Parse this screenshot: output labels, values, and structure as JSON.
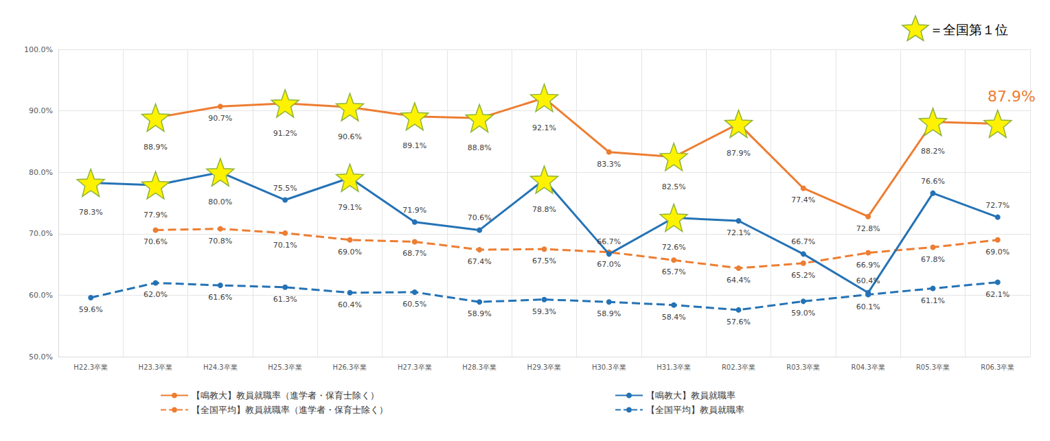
{
  "chart_data": {
    "type": "line",
    "categories": [
      "H22.3卒業",
      "H23.3卒業",
      "H24.3卒業",
      "H25.3卒業",
      "H26.3卒業",
      "H27.3卒業",
      "H28.3卒業",
      "H29.3卒業",
      "H30.3卒業",
      "H31.3卒業",
      "R02.3卒業",
      "R03.3卒業",
      "R04.3卒業",
      "R05.3卒業",
      "R06.3卒業"
    ],
    "ylim": [
      50,
      100
    ],
    "yticks": [
      {
        "value": 50,
        "label": "50.0%"
      },
      {
        "value": 60,
        "label": "60.0%"
      },
      {
        "value": 70,
        "label": "70.0%"
      },
      {
        "value": 80,
        "label": "80.0%"
      },
      {
        "value": 90,
        "label": "90.0%"
      },
      {
        "value": 100,
        "label": "100.0%"
      }
    ],
    "grid": true,
    "legend": "bottom",
    "data_labels": true,
    "marker": "circle",
    "first_place_key": "＝全国第１位",
    "annotations": [
      {
        "text": "87.9%",
        "x": "R06.3卒業",
        "y": 87.9
      }
    ],
    "series": [
      {
        "name": "【鳴教大】教員就職率（進学者・保育士除く）",
        "color": "#ED7D31",
        "line_style": "solid",
        "values": [
          null,
          88.9,
          90.7,
          91.2,
          90.6,
          89.1,
          88.8,
          92.1,
          83.3,
          82.5,
          87.9,
          77.4,
          72.8,
          88.2,
          87.9
        ],
        "value_labels": [
          null,
          "88.9%",
          "90.7%",
          "91.2%",
          "90.6%",
          "89.1%",
          "88.8%",
          "92.1%",
          "83.3%",
          "82.5%",
          "87.9%",
          "77.4%",
          "72.8%",
          "88.2%",
          null
        ],
        "first_place": [
          "H23.3卒業",
          "H25.3卒業",
          "H26.3卒業",
          "H27.3卒業",
          "H28.3卒業",
          "H29.3卒業",
          "H31.3卒業",
          "R02.3卒業",
          "R05.3卒業",
          "R06.3卒業"
        ]
      },
      {
        "name": "【鳴教大】教員就職率",
        "color": "#2472B5",
        "line_style": "solid",
        "values": [
          78.3,
          77.9,
          80.0,
          75.5,
          79.1,
          71.9,
          70.6,
          78.8,
          66.7,
          72.6,
          72.1,
          66.7,
          60.4,
          76.6,
          72.7
        ],
        "value_labels": [
          "78.3%",
          "77.9%",
          "80.0%",
          "75.5%",
          "79.1%",
          "71.9%",
          "70.6%",
          "78.8%",
          "66.7%",
          "72.6%",
          "72.1%",
          "66.7%",
          "60.4%",
          "76.6%",
          "72.7%"
        ],
        "first_place": [
          "H22.3卒業",
          "H23.3卒業",
          "H24.3卒業",
          "H26.3卒業",
          "H29.3卒業",
          "H31.3卒業"
        ]
      },
      {
        "name": "【全国平均】教員就職率（進学者・保育士除く）",
        "color": "#ED7D31",
        "line_style": "dashed",
        "values": [
          null,
          70.6,
          70.8,
          70.1,
          69.0,
          68.7,
          67.4,
          67.5,
          67.0,
          65.7,
          64.4,
          65.2,
          66.9,
          67.8,
          69.0
        ],
        "value_labels": [
          null,
          "70.6%",
          "70.8%",
          "70.1%",
          "69.0%",
          "68.7%",
          "67.4%",
          "67.5%",
          "67.0%",
          "65.7%",
          "64.4%",
          "65.2%",
          "66.9%",
          "67.8%",
          "69.0%"
        ],
        "first_place": []
      },
      {
        "name": "【全国平均】教員就職率",
        "color": "#2472B5",
        "line_style": "dashed",
        "values": [
          59.6,
          62.0,
          61.6,
          61.3,
          60.4,
          60.5,
          58.9,
          59.3,
          58.9,
          58.4,
          57.6,
          59.0,
          60.1,
          61.1,
          62.1
        ],
        "value_labels": [
          "59.6%",
          "62.0%",
          "61.6%",
          "61.3%",
          "60.4%",
          "60.5%",
          "58.9%",
          "59.3%",
          "58.9%",
          "58.4%",
          "57.6%",
          "59.0%",
          "60.1%",
          "61.1%",
          "62.1%"
        ],
        "first_place": []
      }
    ]
  }
}
